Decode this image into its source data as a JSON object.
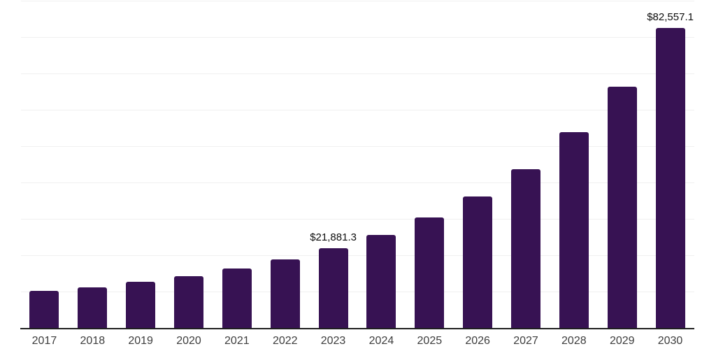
{
  "chart_data": {
    "type": "bar",
    "title": "",
    "xlabel": "",
    "ylabel": "",
    "categories": [
      "2017",
      "2018",
      "2019",
      "2020",
      "2021",
      "2022",
      "2023",
      "2024",
      "2025",
      "2026",
      "2027",
      "2028",
      "2029",
      "2030"
    ],
    "values": [
      10150,
      11200,
      12750,
      14250,
      16350,
      18900,
      21881.3,
      25500,
      30300,
      36250,
      43700,
      53800,
      66300,
      82557.1
    ],
    "data_labels": [
      "",
      "",
      "",
      "",
      "",
      "",
      "$21,881.3",
      "",
      "",
      "",
      "",
      "",
      "",
      "$82,557.1"
    ],
    "ylim": [
      0,
      90000
    ],
    "gridline_step": 10000,
    "grid": "horizontal",
    "legend": "none",
    "y_axis_tick_labels": "none",
    "bar_color": "#371253",
    "axis_line_color": "#1f1f1f",
    "gridline_color": "#f0f0f0",
    "tick_label_color": "#3d3d3d",
    "value_label_color": "#0d0d0d"
  }
}
